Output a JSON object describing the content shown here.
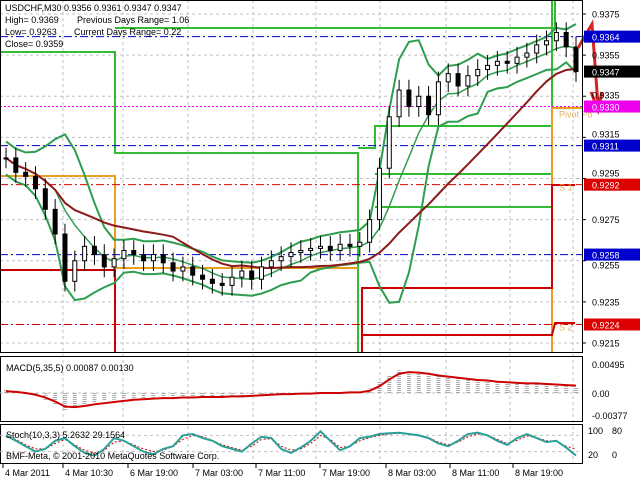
{
  "info": {
    "line1": "USDCHF,M30  0.9356 0.9361 0.9347 0.9347",
    "line2a": "High= 0.9369",
    "line2b": "Previous Days Range= 1.06",
    "line3a": "Low= 0.9263",
    "line3b": "Current Days Range= 0.22",
    "line4": "Close= 0.9359"
  },
  "levels": [
    {
      "price": 0.9364,
      "label": "0.9364",
      "color": "#0000cc",
      "style": "dashdot"
    },
    {
      "price": 0.9347,
      "label": "0.9347",
      "color": "#000000",
      "style": "none"
    },
    {
      "price": 0.933,
      "label": "0.9330",
      "color": "#ee00ee",
      "style": "dot",
      "text": "Pivot Po"
    },
    {
      "price": 0.9311,
      "label": "0.9311",
      "color": "#0000cc",
      "style": "dashdot"
    },
    {
      "price": 0.9292,
      "label": "0.9292",
      "color": "#dd0000",
      "style": "dashdot",
      "text": "S 1"
    },
    {
      "price": 0.9258,
      "label": "0.9258",
      "color": "#0000cc",
      "style": "dashdot"
    },
    {
      "price": 0.9224,
      "label": "0.9224",
      "color": "#dd0000",
      "style": "dashdot",
      "text": "S 2"
    }
  ],
  "colors": {
    "bands": "#2e9e4e",
    "ma": "#8b1a1a",
    "signal": "#cc0000",
    "stoch": "#2aa198",
    "day_lines": "#33bb33",
    "pivot": "#e8a020",
    "support": "#cc0000"
  },
  "chart_data": [
    {
      "type": "line",
      "title": "USDCHF,M30",
      "price_ticks": [
        "0.9375",
        "0.9355",
        "0.9335",
        "0.9315",
        "0.9295",
        "0.9275",
        "0.9255",
        "0.9235",
        "0.9215"
      ],
      "ylim": [
        0.9212,
        0.9382
      ],
      "x_ticks": [
        "4 Mar 2011",
        "4 Mar 10:30",
        "6 Mar 19:00",
        "7 Mar 03:00",
        "7 Mar 11:00",
        "7 Mar 19:00",
        "8 Mar 03:00",
        "8 Mar 11:00",
        "8 Mar 19:00"
      ],
      "close": [
        0.9305,
        0.9298,
        0.9296,
        0.929,
        0.928,
        0.9268,
        0.9245,
        0.9255,
        0.9262,
        0.9258,
        0.9252,
        0.9256,
        0.926,
        0.9258,
        0.9255,
        0.9258,
        0.9254,
        0.925,
        0.9252,
        0.9248,
        0.9246,
        0.9244,
        0.9243,
        0.9247,
        0.925,
        0.9246,
        0.9252,
        0.9255,
        0.9257,
        0.9259,
        0.926,
        0.9261,
        0.9262,
        0.926,
        0.9263,
        0.9262,
        0.9264,
        0.9275,
        0.93,
        0.9325,
        0.9338,
        0.933,
        0.9335,
        0.9326,
        0.9342,
        0.9346,
        0.934,
        0.9345,
        0.9348,
        0.935,
        0.9352,
        0.9351,
        0.9354,
        0.9356,
        0.936,
        0.9362,
        0.9366,
        0.9359,
        0.9347
      ],
      "grid": true
    },
    {
      "type": "line",
      "title": "MACD(5,35,5) 0.00087 0.00130",
      "y_ticks": [
        "0.00495",
        "0.00",
        "-0.00377"
      ],
      "ylim": [
        -0.00377,
        0.00495
      ],
      "histogram": [
        0.0005,
        0.0003,
        0.0,
        -0.0005,
        -0.0012,
        -0.002,
        -0.003,
        -0.0026,
        -0.002,
        -0.0016,
        -0.0014,
        -0.0012,
        -0.001,
        -0.0009,
        -0.0009,
        -0.0008,
        -0.0008,
        -0.0008,
        -0.0007,
        -0.0007,
        -0.0007,
        -0.0007,
        -0.0007,
        -0.0006,
        -0.0005,
        -0.0005,
        -0.0004,
        -0.0003,
        -0.0002,
        -0.0001,
        -0.0001,
        0.0,
        0.0,
        0.0,
        0.0001,
        0.0001,
        0.0001,
        0.0008,
        0.002,
        0.0032,
        0.004,
        0.0038,
        0.0036,
        0.0032,
        0.003,
        0.0028,
        0.0026,
        0.0024,
        0.0022,
        0.002,
        0.0019,
        0.0018,
        0.0017,
        0.0016,
        0.0016,
        0.0015,
        0.0015,
        0.0012,
        0.0009
      ],
      "signal": [
        0.0003,
        0.0002,
        0.0,
        -0.0003,
        -0.0008,
        -0.0015,
        -0.0024,
        -0.0025,
        -0.0023,
        -0.002,
        -0.0018,
        -0.0016,
        -0.0014,
        -0.0012,
        -0.0011,
        -0.001,
        -0.0009,
        -0.0009,
        -0.0008,
        -0.0008,
        -0.0007,
        -0.0007,
        -0.0007,
        -0.0006,
        -0.0006,
        -0.0005,
        -0.0004,
        -0.0003,
        -0.0002,
        -0.0002,
        -0.0001,
        -0.0001,
        0.0,
        0.0,
        0.0,
        0.0001,
        0.0001,
        0.0004,
        0.0012,
        0.0024,
        0.0034,
        0.0037,
        0.0036,
        0.0034,
        0.0031,
        0.0029,
        0.0027,
        0.0025,
        0.0023,
        0.0022,
        0.002,
        0.0019,
        0.0018,
        0.0017,
        0.0017,
        0.0016,
        0.0015,
        0.0014,
        0.0013
      ]
    },
    {
      "type": "line",
      "title": "Stoch(10,3,3) 5.2632 29.1564",
      "y_ticks": [
        "100",
        "80",
        "20",
        "0"
      ],
      "ylim": [
        0,
        100
      ],
      "main": [
        80,
        60,
        40,
        20,
        30,
        60,
        70,
        40,
        15,
        5,
        30,
        70,
        60,
        40,
        20,
        10,
        30,
        40,
        80,
        85,
        70,
        60,
        40,
        30,
        20,
        50,
        75,
        70,
        30,
        15,
        35,
        60,
        95,
        60,
        25,
        40,
        70,
        75,
        85,
        88,
        90,
        85,
        80,
        70,
        50,
        40,
        60,
        85,
        90,
        80,
        60,
        45,
        70,
        85,
        70,
        55,
        60,
        35,
        5
      ],
      "signal": [
        75,
        65,
        45,
        30,
        30,
        50,
        65,
        45,
        25,
        15,
        25,
        55,
        60,
        45,
        30,
        20,
        25,
        40,
        65,
        80,
        75,
        62,
        45,
        35,
        25,
        40,
        65,
        68,
        40,
        25,
        30,
        50,
        80,
        65,
        35,
        40,
        60,
        72,
        80,
        85,
        88,
        86,
        82,
        72,
        55,
        45,
        55,
        75,
        85,
        82,
        65,
        50,
        62,
        78,
        72,
        60,
        58,
        40,
        29
      ]
    }
  ],
  "footer": {
    "copyright": "BMF-Meta, © 2001-2010 MetaQuotes Software Corp."
  }
}
